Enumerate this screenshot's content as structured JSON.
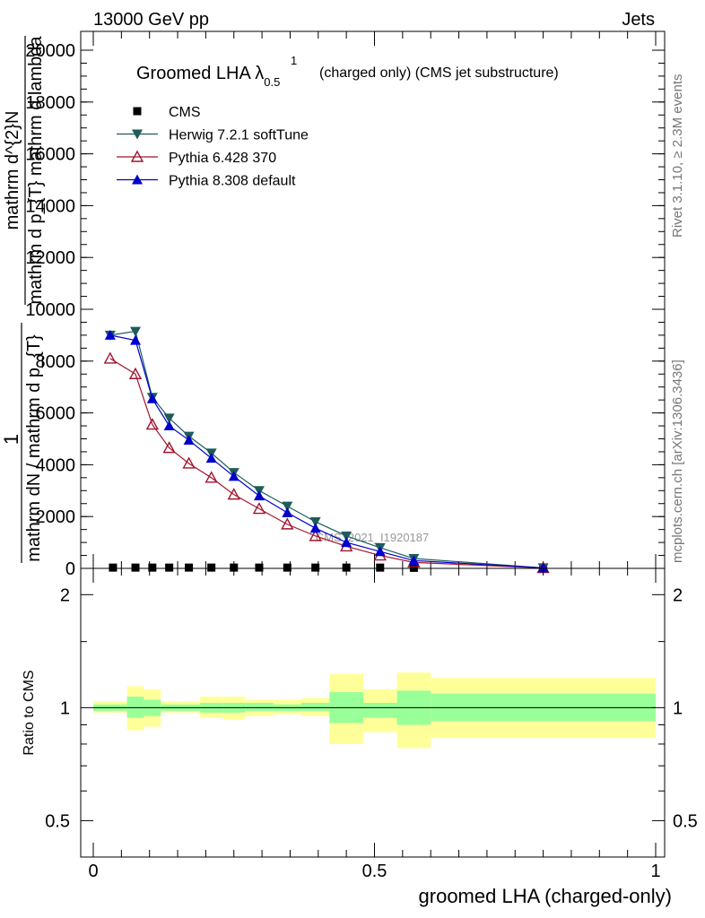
{
  "header": {
    "left": "13000 GeV pp",
    "right": "Jets"
  },
  "side_labels": {
    "rivet": "Rivet 3.1.10, ≥ 2.3M events",
    "mcplots": "mcplots.cern.ch [arXiv:1306.3436]"
  },
  "watermark": "CMS_2021_I1920187",
  "chart_data": [
    {
      "type": "line",
      "title": "Groomed LHA λ",
      "title_sup": "1",
      "title_sub": "0.5",
      "title_suffix": "(charged only) (CMS jet substructure)",
      "ylabel_numerator": "1",
      "ylabel_frac_top": "mathrm d^{2}N",
      "ylabel_frac_bottom": "mathrm d p_{T} mathrm d lambda",
      "ylabel_denominator": "mathrm dN / mathrm d p_{T}",
      "xlim": [
        0,
        1
      ],
      "ylim": [
        0,
        20000
      ],
      "y_ticks": [
        0,
        2000,
        4000,
        6000,
        8000,
        10000,
        12000,
        14000,
        16000,
        18000,
        20000
      ],
      "legend": "top-left",
      "series": [
        {
          "name": "CMS",
          "marker": "square",
          "color": "#000000",
          "x": [
            0.035,
            0.075,
            0.105,
            0.135,
            0.17,
            0.21,
            0.25,
            0.295,
            0.345,
            0.395,
            0.45,
            0.51,
            0.57,
            0.8
          ],
          "y": [
            30,
            30,
            30,
            30,
            30,
            30,
            30,
            30,
            30,
            30,
            30,
            30,
            20,
            5
          ]
        },
        {
          "name": "Herwig 7.2.1 softTune",
          "marker": "triangle-down",
          "color": "#1e5b5b",
          "x": [
            0.03,
            0.075,
            0.105,
            0.135,
            0.17,
            0.21,
            0.25,
            0.295,
            0.345,
            0.395,
            0.45,
            0.51,
            0.57,
            0.8
          ],
          "y": [
            9000,
            9150,
            6600,
            5800,
            5100,
            4450,
            3700,
            3000,
            2400,
            1800,
            1250,
            800,
            380,
            20
          ]
        },
        {
          "name": "Pythia 6.428 370",
          "marker": "triangle-up-open",
          "color": "#a0152e",
          "x": [
            0.03,
            0.075,
            0.105,
            0.135,
            0.17,
            0.21,
            0.25,
            0.295,
            0.345,
            0.395,
            0.45,
            0.51,
            0.57,
            0.8
          ],
          "y": [
            8100,
            7500,
            5550,
            4650,
            4050,
            3500,
            2850,
            2300,
            1700,
            1250,
            850,
            500,
            230,
            15
          ]
        },
        {
          "name": "Pythia 8.308 default",
          "marker": "triangle-up",
          "color": "#0000cc",
          "x": [
            0.03,
            0.075,
            0.105,
            0.135,
            0.17,
            0.21,
            0.25,
            0.295,
            0.345,
            0.395,
            0.45,
            0.51,
            0.57,
            0.8
          ],
          "y": [
            9000,
            8800,
            6550,
            5500,
            4950,
            4250,
            3550,
            2800,
            2150,
            1550,
            1000,
            650,
            300,
            20
          ]
        }
      ]
    },
    {
      "type": "area",
      "xlabel": "groomed LHA (charged-only)",
      "ylabel": "Ratio to CMS",
      "xlim": [
        0,
        1
      ],
      "ylim": [
        0.4,
        2.35
      ],
      "y_scale": "log",
      "y_ticks": [
        0.5,
        1,
        2
      ],
      "y_tick_labels": [
        "0.5",
        "1",
        "2"
      ],
      "x_ticks": [
        0,
        0.5,
        1
      ],
      "x_tick_labels": [
        "0",
        "0.5",
        "1"
      ],
      "reference": 1,
      "band_colors": {
        "stat": "#99ff99",
        "total": "#ffff99"
      },
      "bins": [
        {
          "x0": 0.0,
          "x1": 0.06,
          "inner": [
            0.98,
            1.02
          ],
          "outer": [
            0.97,
            1.04
          ]
        },
        {
          "x0": 0.06,
          "x1": 0.09,
          "inner": [
            0.94,
            1.07
          ],
          "outer": [
            0.87,
            1.14
          ]
        },
        {
          "x0": 0.09,
          "x1": 0.12,
          "inner": [
            0.95,
            1.05
          ],
          "outer": [
            0.89,
            1.12
          ]
        },
        {
          "x0": 0.12,
          "x1": 0.15,
          "inner": [
            0.98,
            1.02
          ],
          "outer": [
            0.97,
            1.04
          ]
        },
        {
          "x0": 0.15,
          "x1": 0.19,
          "inner": [
            0.98,
            1.02
          ],
          "outer": [
            0.97,
            1.04
          ]
        },
        {
          "x0": 0.19,
          "x1": 0.23,
          "inner": [
            0.97,
            1.03
          ],
          "outer": [
            0.94,
            1.07
          ]
        },
        {
          "x0": 0.23,
          "x1": 0.27,
          "inner": [
            0.97,
            1.03
          ],
          "outer": [
            0.93,
            1.07
          ]
        },
        {
          "x0": 0.27,
          "x1": 0.32,
          "inner": [
            0.98,
            1.03
          ],
          "outer": [
            0.95,
            1.05
          ]
        },
        {
          "x0": 0.32,
          "x1": 0.37,
          "inner": [
            0.98,
            1.02
          ],
          "outer": [
            0.96,
            1.05
          ]
        },
        {
          "x0": 0.37,
          "x1": 0.42,
          "inner": [
            0.98,
            1.03
          ],
          "outer": [
            0.95,
            1.06
          ]
        },
        {
          "x0": 0.42,
          "x1": 0.48,
          "inner": [
            0.91,
            1.1
          ],
          "outer": [
            0.8,
            1.23
          ]
        },
        {
          "x0": 0.48,
          "x1": 0.54,
          "inner": [
            0.94,
            1.03
          ],
          "outer": [
            0.86,
            1.12
          ]
        },
        {
          "x0": 0.54,
          "x1": 0.6,
          "inner": [
            0.9,
            1.11
          ],
          "outer": [
            0.78,
            1.24
          ]
        },
        {
          "x0": 0.6,
          "x1": 1.0,
          "inner": [
            0.92,
            1.09
          ],
          "outer": [
            0.83,
            1.2
          ]
        }
      ]
    }
  ]
}
